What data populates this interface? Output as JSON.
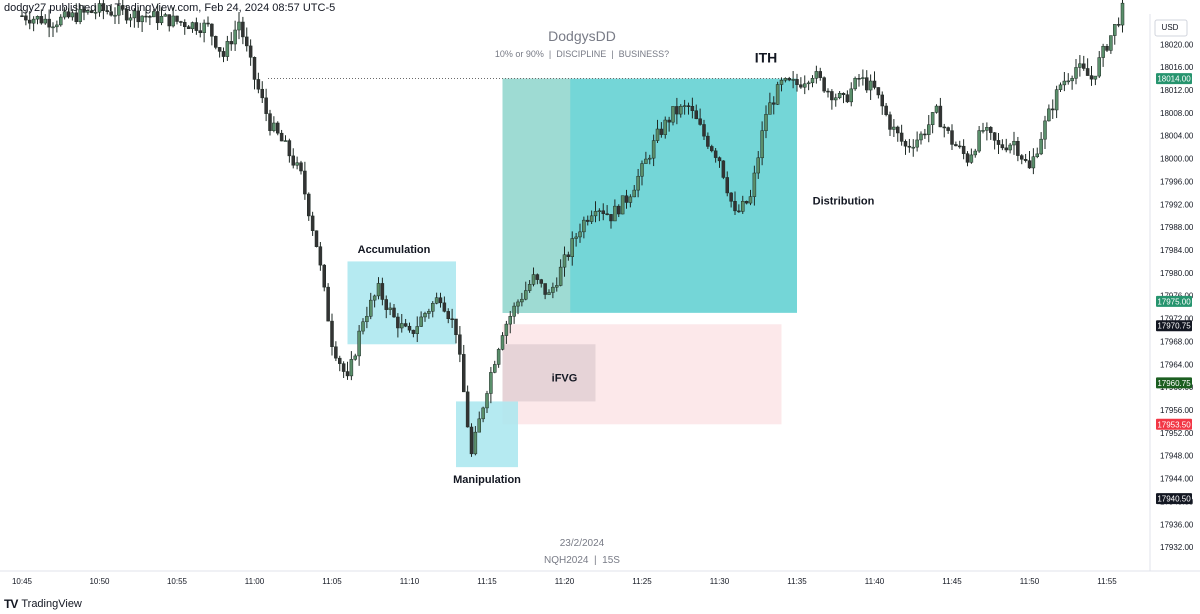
{
  "header": {
    "publish_text": "dodgy27 published on TradingView.com, Feb 24, 2024 08:57 UTC-5"
  },
  "watermark": {
    "title": "DodgysDD",
    "subtitle": "10% or 90%  |  DISCIPLINE  |  BUSINESS?",
    "date": "23/2/2024",
    "symbol": "NQH2024  |  15S"
  },
  "footer": {
    "brand": "TradingView",
    "logo": "tv-logo-icon"
  },
  "colors": {
    "up": "#5a8f6b",
    "down": "#333333",
    "candle_outline": "#1e2a24",
    "accumulation_box": "#a8e6ee",
    "manipulation_box": "#a8e6ee",
    "distribution_box": "#5ccfd0",
    "distribution_light": "#a3dbd3",
    "fvg_box": "#fce4e6",
    "ifvg_box": "#e2cfd4",
    "price_label_green": "#26946e",
    "price_label_black": "#131722",
    "price_label_red": "#f23645",
    "price_label_darkgreen": "#1b5e20"
  },
  "chart_data": {
    "type": "candlestick",
    "instrument": "NQH2024",
    "interval": "15S",
    "date": "23/2/2024",
    "currency": "USD",
    "ylim": [
      17928,
      18026
    ],
    "x_ticks": [
      "10:45",
      "10:50",
      "10:55",
      "11:00",
      "11:05",
      "11:10",
      "11:15",
      "11:20",
      "11:25",
      "11:30",
      "11:35",
      "11:40",
      "11:45",
      "11:50",
      "11:55"
    ],
    "y_ticks": [
      18020.0,
      18016.0,
      18012.0,
      18008.0,
      18004.0,
      18000.0,
      17996.0,
      17992.0,
      17988.0,
      17984.0,
      17980.0,
      17976.0,
      17972.0,
      17968.0,
      17964.0,
      17960.0,
      17956.0,
      17952.0,
      17948.0,
      17944.0,
      17940.0,
      17936.0,
      17932.0
    ],
    "price_labels": [
      {
        "value": "18014.00",
        "color": "green"
      },
      {
        "value": "17975.00",
        "color": "green"
      },
      {
        "value": "17970.75",
        "color": "black"
      },
      {
        "value": "17960.75",
        "color": "darkgreen"
      },
      {
        "value": "17953.50",
        "color": "red"
      },
      {
        "value": "17940.50",
        "color": "black"
      }
    ],
    "ith_level": 18014.0,
    "annotations": [
      {
        "text": "ITH"
      },
      {
        "text": "Accumulation"
      },
      {
        "text": "Manipulation"
      },
      {
        "text": "Distribution"
      },
      {
        "text": "iFVG"
      }
    ],
    "zones": [
      {
        "name": "accumulation",
        "time_from": "11:06",
        "time_to": "11:13",
        "price_from": 17967.5,
        "price_to": 17982.0
      },
      {
        "name": "manipulation",
        "time_from": "11:13",
        "time_to": "11:17",
        "price_from": 17946.0,
        "price_to": 17957.5
      },
      {
        "name": "distribution",
        "time_from": "11:16",
        "time_to": "11:35",
        "price_from": 17973.0,
        "price_to": 18014.0
      },
      {
        "name": "fvg",
        "time_from": "11:16",
        "time_to": "11:34",
        "price_from": 17953.5,
        "price_to": 17971.0
      },
      {
        "name": "ifvg",
        "time_from": "11:16",
        "time_to": "11:22",
        "price_from": 17957.5,
        "price_to": 17967.5
      }
    ],
    "ohlc_path": [
      {
        "t": "10:45",
        "p": 18025
      },
      {
        "t": "10:47",
        "p": 18024
      },
      {
        "t": "10:50",
        "p": 18026
      },
      {
        "t": "10:53",
        "p": 18025
      },
      {
        "t": "10:57",
        "p": 18023
      },
      {
        "t": "10:58",
        "p": 18018
      },
      {
        "t": "10:59",
        "p": 18024
      },
      {
        "t": "11:00",
        "p": 18014
      },
      {
        "t": "11:01",
        "p": 18006
      },
      {
        "t": "11:02",
        "p": 18002
      },
      {
        "t": "11:03",
        "p": 17997
      },
      {
        "t": "11:04",
        "p": 17985
      },
      {
        "t": "11:05",
        "p": 17968
      },
      {
        "t": "11:06",
        "p": 17961
      },
      {
        "t": "11:07",
        "p": 17972
      },
      {
        "t": "11:08",
        "p": 17977
      },
      {
        "t": "11:09",
        "p": 17972
      },
      {
        "t": "11:10",
        "p": 17969
      },
      {
        "t": "11:11",
        "p": 17973
      },
      {
        "t": "11:12",
        "p": 17976
      },
      {
        "t": "11:13",
        "p": 17970
      },
      {
        "t": "11:14",
        "p": 17948
      },
      {
        "t": "11:15",
        "p": 17960
      },
      {
        "t": "11:16",
        "p": 17970
      },
      {
        "t": "11:17",
        "p": 17975
      },
      {
        "t": "11:18",
        "p": 17979
      },
      {
        "t": "11:19",
        "p": 17976
      },
      {
        "t": "11:20",
        "p": 17982
      },
      {
        "t": "11:21",
        "p": 17988
      },
      {
        "t": "11:22",
        "p": 17992
      },
      {
        "t": "11:23",
        "p": 17990
      },
      {
        "t": "11:24",
        "p": 17993
      },
      {
        "t": "11:25",
        "p": 17998
      },
      {
        "t": "11:26",
        "p": 18004
      },
      {
        "t": "11:27",
        "p": 18008
      },
      {
        "t": "11:28",
        "p": 18009
      },
      {
        "t": "11:29",
        "p": 18004
      },
      {
        "t": "11:30",
        "p": 18000
      },
      {
        "t": "11:31",
        "p": 17990
      },
      {
        "t": "11:32",
        "p": 17993
      },
      {
        "t": "11:33",
        "p": 18008
      },
      {
        "t": "11:34",
        "p": 18013
      },
      {
        "t": "11:35",
        "p": 18013
      },
      {
        "t": "11:36",
        "p": 18015
      },
      {
        "t": "11:37",
        "p": 18012
      },
      {
        "t": "11:38",
        "p": 18010
      },
      {
        "t": "11:39",
        "p": 18014
      },
      {
        "t": "11:40",
        "p": 18012
      },
      {
        "t": "11:41",
        "p": 18006
      },
      {
        "t": "11:42",
        "p": 18002
      },
      {
        "t": "11:43",
        "p": 18004
      },
      {
        "t": "11:44",
        "p": 18008
      },
      {
        "t": "11:45",
        "p": 18003
      },
      {
        "t": "11:46",
        "p": 18000
      },
      {
        "t": "11:47",
        "p": 18005
      },
      {
        "t": "11:48",
        "p": 18002
      },
      {
        "t": "11:49",
        "p": 18003
      },
      {
        "t": "11:50",
        "p": 17998
      },
      {
        "t": "11:51",
        "p": 18006
      },
      {
        "t": "11:52",
        "p": 18013
      },
      {
        "t": "11:53",
        "p": 18016
      },
      {
        "t": "11:54",
        "p": 18014
      },
      {
        "t": "11:55",
        "p": 18020
      },
      {
        "t": "11:56",
        "p": 18026
      }
    ]
  }
}
